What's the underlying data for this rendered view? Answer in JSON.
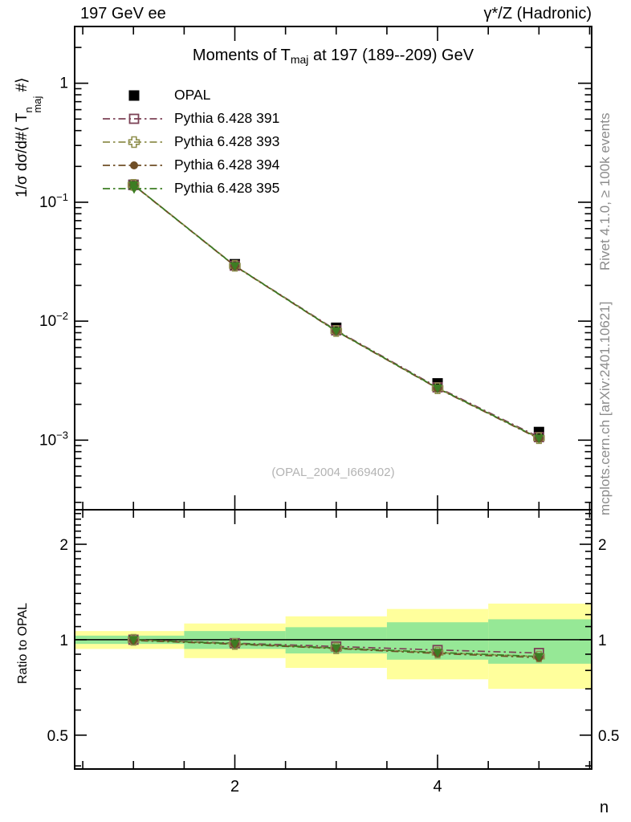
{
  "header": {
    "left": "197 GeV ee",
    "right": "γ*/Z (Hadronic)"
  },
  "side_notes": {
    "top": "Rivet 4.1.0, ≥ 100k events",
    "bottom": "mcplots.cern.ch [arXiv:2401.10621]"
  },
  "watermark": "(OPAL_2004_I669402)",
  "chart_data": {
    "type": "line",
    "title_parts": {
      "pre": "Moments of T",
      "sub": "maj",
      "post": " at 197 (189--209) GeV"
    },
    "xlabel": "n",
    "ylabel_parts": {
      "pre": "1/σ  dσ/d#⟨ T",
      "sup": "n",
      "sub": "maj",
      "post": " #⟩"
    },
    "ratio_label": "Ratio to OPAL",
    "x": [
      1,
      2,
      3,
      4,
      5
    ],
    "xlim": [
      0.42,
      5.52
    ],
    "x_major_ticks": [
      2,
      4
    ],
    "x_minor_step": 0.5,
    "main_panel": {
      "yscale": "log",
      "ylim": [
        0.00026,
        3.0
      ],
      "labeled_ticks": [
        1,
        0.1,
        0.01,
        0.001
      ]
    },
    "ratio_panel": {
      "yscale": "log",
      "ylim": [
        0.391,
        2.57
      ],
      "labeled_ticks": [
        2,
        1,
        0.5
      ],
      "minor_step": 0.1
    },
    "series": [
      {
        "name": "OPAL",
        "role": "data",
        "marker": "square-filled",
        "color": "#000000",
        "values": [
          0.14,
          0.0301,
          0.0088,
          0.003,
          0.00117
        ]
      },
      {
        "name": "Pythia 6.428 391",
        "role": "mc",
        "marker": "square-open",
        "color": "#7c4256",
        "linestyle": "dashdot",
        "values": [
          0.14,
          0.0293,
          0.00838,
          0.00278,
          0.00106
        ],
        "ratio": [
          1.0,
          0.975,
          0.952,
          0.928,
          0.908
        ]
      },
      {
        "name": "Pythia 6.428 393",
        "role": "mc",
        "marker": "cross-open",
        "color": "#8f8f4d",
        "linestyle": "dashdot",
        "values": [
          0.1399,
          0.0292,
          0.00827,
          0.00273,
          0.00104
        ],
        "ratio": [
          0.999,
          0.97,
          0.94,
          0.91,
          0.885
        ]
      },
      {
        "name": "Pythia 6.428 394",
        "role": "mc",
        "marker": "circle-filled",
        "color": "#6f4e26",
        "linestyle": "dashdot",
        "values": [
          0.1393,
          0.0291,
          0.00825,
          0.00272,
          0.00103
        ],
        "ratio": [
          0.995,
          0.968,
          0.938,
          0.905,
          0.878
        ]
      },
      {
        "name": "Pythia 6.428 395",
        "role": "mc",
        "marker": "triangle-down-filled",
        "color": "#3d7d23",
        "linestyle": "dashdot",
        "values": [
          0.14,
          0.0292,
          0.00829,
          0.00274,
          0.00104
        ],
        "ratio": [
          1.0,
          0.972,
          0.942,
          0.912,
          0.885
        ]
      }
    ],
    "uncertainty_bands": {
      "bin_edges": [
        0.42,
        1.5,
        2.5,
        3.5,
        4.5,
        5.52
      ],
      "green_halfwidth": [
        0.03,
        0.065,
        0.095,
        0.135,
        0.16
      ],
      "yellow_halfwidth": [
        0.065,
        0.125,
        0.185,
        0.25,
        0.3
      ],
      "green_color": "#96e896",
      "yellow_color": "#ffff9c"
    }
  }
}
